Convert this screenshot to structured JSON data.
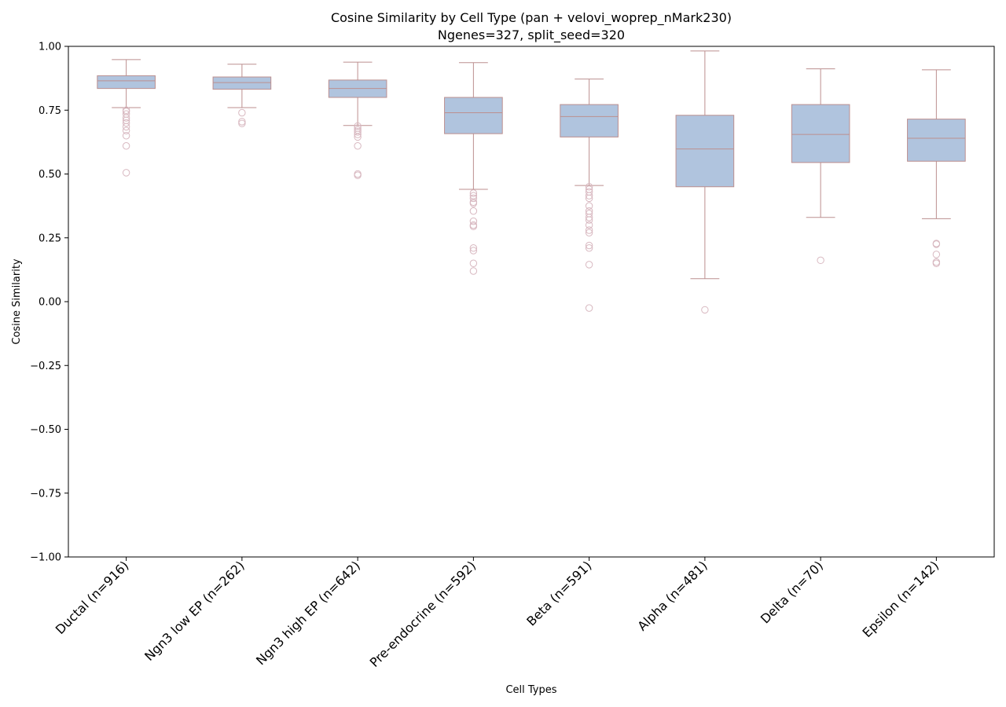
{
  "chart_data": {
    "type": "box",
    "title": "Cosine Similarity by Cell Type (pan + velovi_woprep_nMark230)",
    "subtitle": "Ngenes=327, split_seed=320",
    "xlabel": "Cell Types",
    "ylabel": "Cosine Similarity",
    "ylim": [
      -1.0,
      1.0
    ],
    "yticks": [
      -1.0,
      -0.75,
      -0.5,
      -0.25,
      0.0,
      0.25,
      0.5,
      0.75,
      1.0
    ],
    "ytick_labels": [
      "−1.00",
      "−0.75",
      "−0.50",
      "−0.25",
      "0.00",
      "0.25",
      "0.50",
      "0.75",
      "1.00"
    ],
    "grid": false,
    "colors": {
      "box_fill": "#b0c4de",
      "box_edge": "#bc8f8f",
      "flier": "#d8b8c0"
    },
    "categories": [
      "Ductal (n=916)",
      "Ngn3 low EP (n=262)",
      "Ngn3 high EP (n=642)",
      "Pre-endocrine (n=592)",
      "Beta (n=591)",
      "Alpha (n=481)",
      "Delta (n=70)",
      "Epsilon (n=142)"
    ],
    "boxes": [
      {
        "whislo": 0.76,
        "q1": 0.835,
        "med": 0.865,
        "q3": 0.885,
        "whishi": 0.948,
        "fliers": [
          0.75,
          0.745,
          0.735,
          0.72,
          0.71,
          0.7,
          0.685,
          0.67,
          0.65,
          0.61,
          0.505
        ]
      },
      {
        "whislo": 0.76,
        "q1": 0.832,
        "med": 0.858,
        "q3": 0.88,
        "whishi": 0.93,
        "fliers": [
          0.74,
          0.705,
          0.698
        ]
      },
      {
        "whislo": 0.69,
        "q1": 0.8,
        "med": 0.835,
        "q3": 0.868,
        "whishi": 0.938,
        "fliers": [
          0.688,
          0.68,
          0.672,
          0.665,
          0.655,
          0.645,
          0.61,
          0.5,
          0.495
        ]
      },
      {
        "whislo": 0.44,
        "q1": 0.658,
        "med": 0.74,
        "q3": 0.8,
        "whishi": 0.936,
        "fliers": [
          0.425,
          0.415,
          0.405,
          0.39,
          0.385,
          0.355,
          0.315,
          0.3,
          0.295,
          0.21,
          0.2,
          0.15,
          0.12
        ]
      },
      {
        "whislo": 0.455,
        "q1": 0.645,
        "med": 0.725,
        "q3": 0.772,
        "whishi": 0.872,
        "fliers": [
          0.45,
          0.44,
          0.43,
          0.415,
          0.405,
          0.375,
          0.355,
          0.345,
          0.33,
          0.32,
          0.3,
          0.28,
          0.27,
          0.22,
          0.21,
          0.145,
          -0.025
        ]
      },
      {
        "whislo": 0.09,
        "q1": 0.45,
        "med": 0.598,
        "q3": 0.73,
        "whishi": 0.982,
        "fliers": [
          -0.032
        ]
      },
      {
        "whislo": 0.33,
        "q1": 0.545,
        "med": 0.655,
        "q3": 0.772,
        "whishi": 0.912,
        "fliers": [
          0.162
        ]
      },
      {
        "whislo": 0.325,
        "q1": 0.55,
        "med": 0.64,
        "q3": 0.715,
        "whishi": 0.908,
        "fliers": [
          0.228,
          0.225,
          0.185,
          0.155,
          0.15
        ]
      }
    ]
  }
}
